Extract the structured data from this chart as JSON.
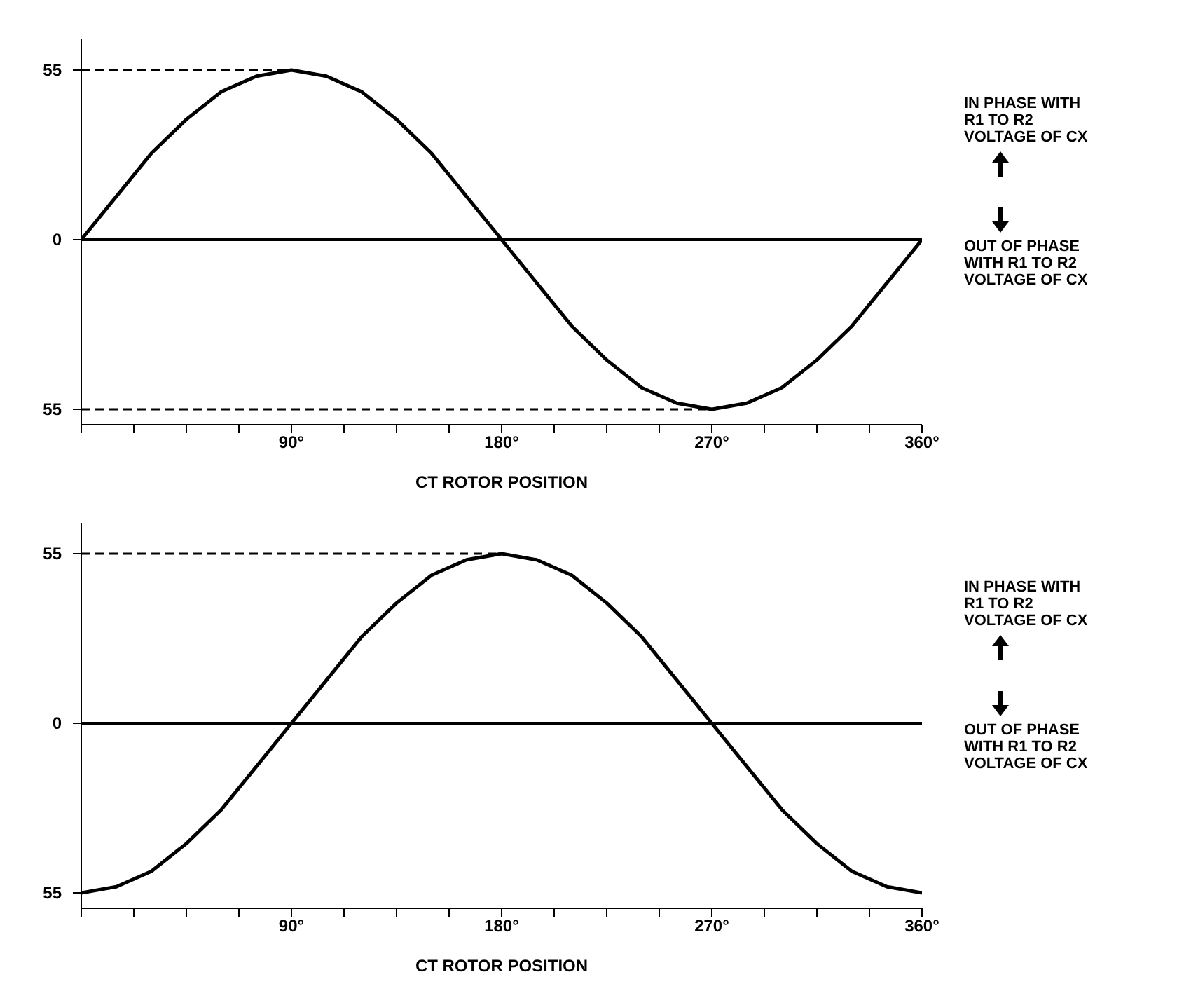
{
  "chart_data": [
    {
      "type": "line",
      "xlabel": "CT ROTOR POSITION",
      "x": [
        0,
        15,
        30,
        45,
        60,
        75,
        90,
        105,
        120,
        135,
        150,
        165,
        180,
        195,
        210,
        225,
        240,
        255,
        270,
        285,
        300,
        315,
        330,
        345,
        360
      ],
      "series": [
        {
          "color": "#000000",
          "values": [
            0,
            14,
            28,
            39,
            48,
            53,
            55,
            53,
            48,
            39,
            28,
            14,
            0,
            -14,
            -28,
            -39,
            -48,
            -53,
            -55,
            -53,
            -48,
            -39,
            -28,
            -14,
            0
          ]
        }
      ],
      "xlim": [
        0,
        360
      ],
      "ylim": [
        -60,
        65
      ],
      "xticks": [
        {
          "value": 0,
          "label": null
        },
        {
          "value": 22.5,
          "label": null
        },
        {
          "value": 45,
          "label": null
        },
        {
          "value": 67.5,
          "label": null
        },
        {
          "value": 90,
          "label": "90°"
        },
        {
          "value": 112.5,
          "label": null
        },
        {
          "value": 135,
          "label": null
        },
        {
          "value": 157.5,
          "label": null
        },
        {
          "value": 180,
          "label": "180°"
        },
        {
          "value": 202.5,
          "label": null
        },
        {
          "value": 225,
          "label": null
        },
        {
          "value": 247.5,
          "label": null
        },
        {
          "value": 270,
          "label": "270°"
        },
        {
          "value": 292.5,
          "label": null
        },
        {
          "value": 315,
          "label": null
        },
        {
          "value": 337.5,
          "label": null
        },
        {
          "value": 360,
          "label": "360°"
        }
      ],
      "yticks": [
        {
          "value": -55,
          "label": "55"
        },
        {
          "value": 0,
          "label": "0"
        },
        {
          "value": 55,
          "label": "55"
        }
      ],
      "ref_lines": [
        {
          "axis": "y",
          "value": 0,
          "line_style": "solid",
          "color": "#000000"
        },
        {
          "axis": "y",
          "value": 55,
          "line_style": "dashed",
          "color": "#000000"
        },
        {
          "axis": "y",
          "value": -55,
          "line_style": "dashed",
          "color": "#000000"
        }
      ],
      "annotations": [
        "IN PHASE WITH\nR1 TO R2\nVOLTAGE OF CX",
        "OUT OF PHASE\nWITH R1 TO R2\nVOLTAGE OF CX"
      ],
      "grid": false,
      "legend": false,
      "marker": "none",
      "line_style": "solid"
    },
    {
      "type": "line",
      "xlabel": "CT ROTOR POSITION",
      "x": [
        0,
        15,
        30,
        45,
        60,
        75,
        90,
        105,
        120,
        135,
        150,
        165,
        180,
        195,
        210,
        225,
        240,
        255,
        270,
        285,
        300,
        315,
        330,
        345,
        360
      ],
      "series": [
        {
          "color": "#000000",
          "values": [
            -55,
            -53,
            -48,
            -39,
            -28,
            -14,
            0,
            14,
            28,
            39,
            48,
            53,
            55,
            53,
            48,
            39,
            28,
            14,
            0,
            -14,
            -28,
            -39,
            -48,
            -53,
            -55
          ]
        }
      ],
      "xlim": [
        0,
        360
      ],
      "ylim": [
        -60,
        65
      ],
      "xticks": [
        {
          "value": 0,
          "label": null
        },
        {
          "value": 22.5,
          "label": null
        },
        {
          "value": 45,
          "label": null
        },
        {
          "value": 67.5,
          "label": null
        },
        {
          "value": 90,
          "label": "90°"
        },
        {
          "value": 112.5,
          "label": null
        },
        {
          "value": 135,
          "label": null
        },
        {
          "value": 157.5,
          "label": null
        },
        {
          "value": 180,
          "label": "180°"
        },
        {
          "value": 202.5,
          "label": null
        },
        {
          "value": 225,
          "label": null
        },
        {
          "value": 247.5,
          "label": null
        },
        {
          "value": 270,
          "label": "270°"
        },
        {
          "value": 292.5,
          "label": null
        },
        {
          "value": 315,
          "label": null
        },
        {
          "value": 337.5,
          "label": null
        },
        {
          "value": 360,
          "label": "360°"
        }
      ],
      "yticks": [
        {
          "value": -55,
          "label": "55"
        },
        {
          "value": 0,
          "label": "0"
        },
        {
          "value": 55,
          "label": "55"
        }
      ],
      "ref_lines": [
        {
          "axis": "y",
          "value": 0,
          "line_style": "solid",
          "color": "#000000"
        },
        {
          "axis": "y",
          "value": 55,
          "line_style": "dashed",
          "color": "#000000"
        }
      ],
      "annotations": [
        "IN PHASE WITH\nR1 TO R2\nVOLTAGE OF CX",
        "OUT OF PHASE\nWITH R1 TO R2\nVOLTAGE OF CX"
      ],
      "grid": false,
      "legend": false,
      "marker": "none",
      "line_style": "solid"
    }
  ]
}
